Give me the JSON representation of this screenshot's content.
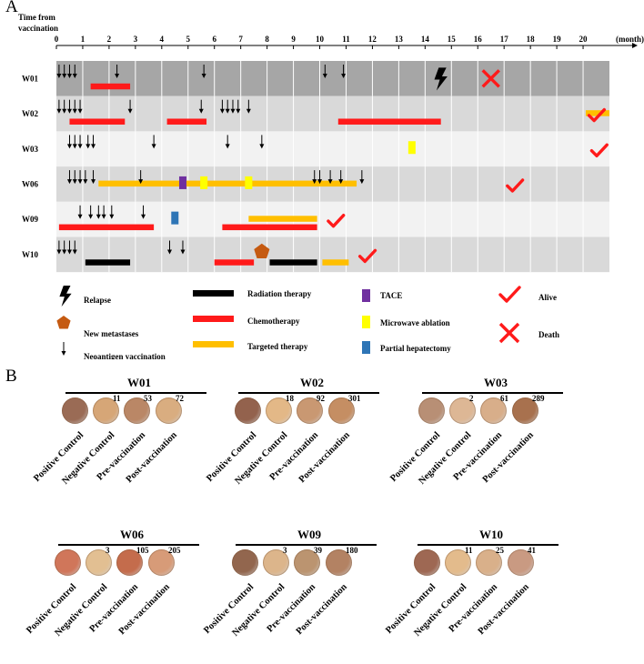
{
  "panels": {
    "a_letter": "A",
    "b_letter": "B"
  },
  "timeline": {
    "axis_title_line1": "Time from",
    "axis_title_line2": "vaccination",
    "axis_unit": "(month)",
    "max_month": 21,
    "ticks": [
      "0",
      "1",
      "2",
      "3",
      "4",
      "5",
      "6",
      "7",
      "8",
      "9",
      "10",
      "11",
      "12",
      "13",
      "14",
      "15",
      "16",
      "17",
      "18",
      "19",
      "20"
    ],
    "colors": {
      "radiation": "#000000",
      "chemo": "#ff1a1a",
      "targeted": "#ffbf00",
      "tace": "#7030a0",
      "microwave": "#ffff00",
      "hepatectomy": "#2e75b6",
      "metastases": "#c55a11",
      "alive": "#ff1a1a",
      "death": "#ff1a1a"
    },
    "patients": [
      {
        "name": "W01",
        "band": "#a6a6a6",
        "vaccinations": [
          0.1,
          0.3,
          0.5,
          0.7,
          2.3,
          5.6,
          10.2,
          10.9
        ],
        "bars": [
          {
            "type": "chemo",
            "start": 1.3,
            "end": 2.8,
            "lane": 0
          }
        ],
        "squares": [],
        "events": [
          {
            "type": "relapse",
            "month": 14.6
          },
          {
            "type": "death",
            "month": 16.5
          }
        ]
      },
      {
        "name": "W02",
        "band": "#d9d9d9",
        "vaccinations": [
          0.1,
          0.3,
          0.5,
          0.7,
          0.9,
          2.8,
          5.5,
          6.3,
          6.5,
          6.7,
          6.9,
          7.3
        ],
        "bars": [
          {
            "type": "chemo",
            "start": 0.5,
            "end": 2.6,
            "lane": 0
          },
          {
            "type": "chemo",
            "start": 4.2,
            "end": 5.7,
            "lane": 0
          },
          {
            "type": "chemo",
            "start": 10.7,
            "end": 14.6,
            "lane": 0
          },
          {
            "type": "targeted",
            "start": 20.1,
            "end": 21.0,
            "lane": -1
          }
        ],
        "squares": [],
        "events": [
          {
            "type": "alive",
            "month": 20.5
          }
        ]
      },
      {
        "name": "W03",
        "band": "#f2f2f2",
        "vaccinations": [
          0.5,
          0.7,
          0.9,
          1.2,
          1.4,
          3.7,
          6.5,
          7.8
        ],
        "bars": [],
        "squares": [
          {
            "type": "microwave",
            "month": 13.5
          }
        ],
        "events": [
          {
            "type": "alive",
            "month": 20.6
          }
        ]
      },
      {
        "name": "W06",
        "band": "#d9d9d9",
        "vaccinations": [
          0.5,
          0.7,
          0.9,
          1.1,
          1.4,
          3.2,
          9.8,
          10.0,
          10.4,
          10.8,
          11.6
        ],
        "bars": [
          {
            "type": "targeted",
            "start": 1.6,
            "end": 11.4,
            "lane": -1
          }
        ],
        "squares": [
          {
            "type": "tace",
            "month": 4.8
          },
          {
            "type": "microwave",
            "month": 5.6
          },
          {
            "type": "microwave",
            "month": 7.3
          }
        ],
        "events": [
          {
            "type": "alive",
            "month": 17.4
          }
        ]
      },
      {
        "name": "W09",
        "band": "#f2f2f2",
        "vaccinations": [
          0.9,
          1.3,
          1.6,
          1.8,
          2.1,
          3.3
        ],
        "bars": [
          {
            "type": "chemo",
            "start": 0.1,
            "end": 3.7,
            "lane": 0
          },
          {
            "type": "targeted",
            "start": 7.3,
            "end": 9.9,
            "lane": -1
          },
          {
            "type": "chemo",
            "start": 6.3,
            "end": 9.9,
            "lane": 0
          }
        ],
        "squares": [
          {
            "type": "hepatectomy",
            "month": 4.5
          }
        ],
        "events": [
          {
            "type": "alive",
            "month": 10.6
          }
        ]
      },
      {
        "name": "W10",
        "band": "#d9d9d9",
        "vaccinations": [
          0.1,
          0.3,
          0.5,
          0.7,
          4.3,
          4.8
        ],
        "bars": [
          {
            "type": "radiation",
            "start": 1.1,
            "end": 2.8,
            "lane": 0
          },
          {
            "type": "chemo",
            "start": 6.0,
            "end": 7.5,
            "lane": 0
          },
          {
            "type": "radiation",
            "start": 8.1,
            "end": 9.9,
            "lane": 0
          },
          {
            "type": "targeted",
            "start": 10.1,
            "end": 11.1,
            "lane": 0
          }
        ],
        "squares": [],
        "events": [
          {
            "type": "metastases",
            "month": 7.8
          },
          {
            "type": "alive",
            "month": 11.8
          }
        ]
      }
    ]
  },
  "legend": {
    "relapse": "Relapse",
    "metastases": "New metastases",
    "vaccination": "Neoantigen vaccination",
    "radiation": "Radiation therapy",
    "chemo": "Chemotherapy",
    "targeted": "Targeted therapy",
    "tace": "TACE",
    "microwave": "Microwave ablation",
    "hepatectomy": "Partial hepatectomy",
    "alive": "Alive",
    "death": "Death"
  },
  "elispot": {
    "labels": [
      "Positive Control",
      "Negative Control",
      "Pre-vaccination",
      "Post-vaccination"
    ],
    "groups": [
      {
        "name": "W01",
        "counts": [
          "11",
          "53",
          "72"
        ],
        "colors": [
          "#9a6b55",
          "#d6a677",
          "#ba8766",
          "#d9ad80"
        ]
      },
      {
        "name": "W02",
        "counts": [
          "18",
          "92",
          "301"
        ],
        "colors": [
          "#93624d",
          "#e3b887",
          "#c99872",
          "#c58e63"
        ]
      },
      {
        "name": "W03",
        "counts": [
          "2",
          "61",
          "289"
        ],
        "colors": [
          "#b88f75",
          "#ddb795",
          "#d8ae8a",
          "#a8714e"
        ]
      },
      {
        "name": "W06",
        "counts": [
          "3",
          "105",
          "205"
        ],
        "colors": [
          "#d0765a",
          "#e2bf92",
          "#c46c4c",
          "#d79b78"
        ]
      },
      {
        "name": "W09",
        "counts": [
          "3",
          "39",
          "180"
        ],
        "colors": [
          "#92664e",
          "#dcb58b",
          "#bb9470",
          "#b38263"
        ]
      },
      {
        "name": "W10",
        "counts": [
          "11",
          "25",
          "41"
        ],
        "colors": [
          "#9e6853",
          "#e3bb8c",
          "#d9b08a",
          "#c99a82"
        ]
      }
    ]
  }
}
